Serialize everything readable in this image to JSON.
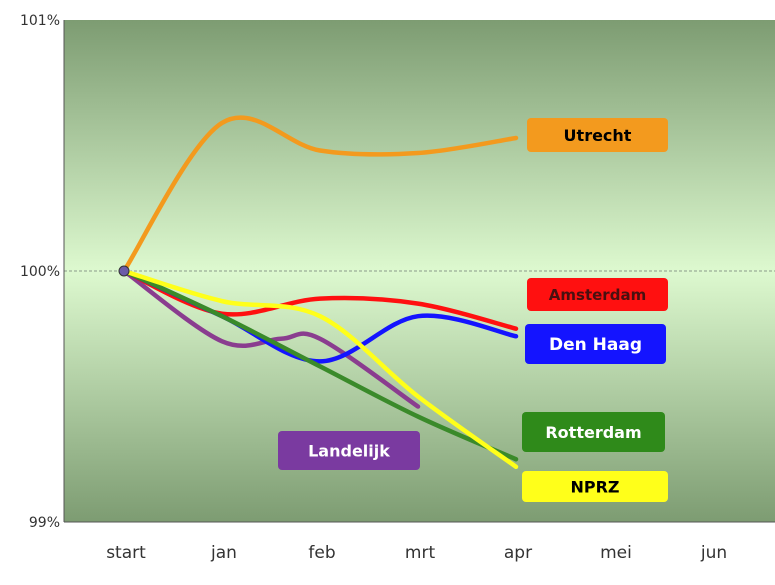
{
  "chart_data": {
    "type": "line",
    "categories": [
      "start",
      "jan",
      "feb",
      "mrt",
      "apr",
      "mei",
      "jun"
    ],
    "yticks": [
      "101%",
      "100%",
      "99%"
    ],
    "ylim": [
      99,
      101
    ],
    "reference_line": 100,
    "grid": false,
    "plot_background": [
      "#7d9c72",
      "#ddf9cf",
      "#7d9c72"
    ],
    "series": [
      {
        "name": "Utrecht",
        "color": "#f39a1e",
        "label_bg": "#f39a1e",
        "label_color": "#000000",
        "x": [
          0,
          1,
          2,
          3,
          4
        ],
        "values": [
          100.0,
          100.59,
          100.48,
          100.47,
          100.53
        ]
      },
      {
        "name": "Amsterdam",
        "color": "#ff1010",
        "label_bg": "#ff1010",
        "label_color": "#4a1010",
        "x": [
          0,
          1,
          2,
          3,
          4
        ],
        "values": [
          100.0,
          99.83,
          99.89,
          99.87,
          99.77
        ]
      },
      {
        "name": "Den Haag",
        "color": "#1414ff",
        "label_bg": "#1414ff",
        "label_color": "#ffffff",
        "x": [
          0,
          1,
          2,
          3,
          4
        ],
        "values": [
          100.0,
          99.82,
          99.64,
          99.82,
          99.74
        ]
      },
      {
        "name": "Rotterdam",
        "color": "#3a8a2a",
        "label_bg": "#2f8a1a",
        "label_color": "#ffffff",
        "x": [
          0,
          1,
          2,
          3,
          4
        ],
        "values": [
          100.0,
          99.82,
          99.62,
          99.42,
          99.25
        ]
      },
      {
        "name": "NPRZ",
        "color": "#ffff1a",
        "label_bg": "#ffff1a",
        "label_color": "#000000",
        "x": [
          0,
          1,
          2,
          3,
          4
        ],
        "values": [
          100.0,
          99.88,
          99.82,
          99.5,
          99.22
        ]
      },
      {
        "name": "Landelijk",
        "color": "#8a3d8f",
        "label_bg": "#7a3aa0",
        "label_color": "#ffffff",
        "x": [
          0,
          1,
          1.6,
          2,
          3
        ],
        "values": [
          100.0,
          99.72,
          99.73,
          99.73,
          99.46
        ]
      }
    ]
  }
}
